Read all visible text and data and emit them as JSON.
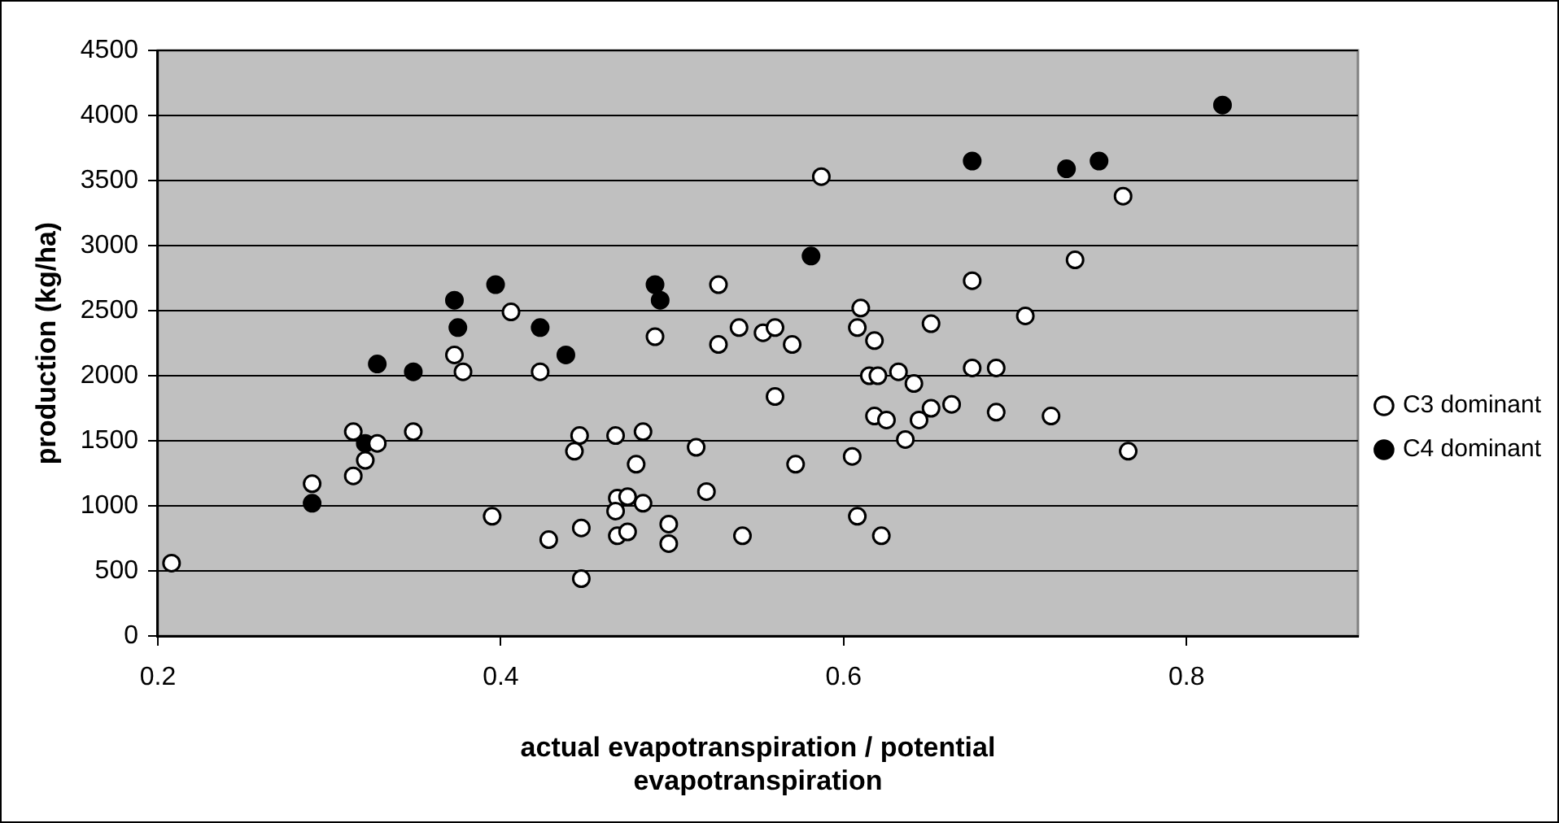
{
  "chart_data": {
    "type": "scatter",
    "xlabel": "actual evapotranspiration / potential evapotranspiration",
    "ylabel": "production (kg/ha)",
    "xlim": [
      0.2,
      0.9
    ],
    "xticks": [
      0.2,
      0.4,
      0.6,
      0.8
    ],
    "ylim": [
      0,
      4500
    ],
    "yticks": [
      0,
      500,
      1000,
      1500,
      2000,
      2500,
      3000,
      3500,
      4000,
      4500
    ],
    "grid": "y",
    "legend": "right",
    "marker": "circle",
    "series": [
      {
        "name": "C3 dominant",
        "color": "#ffffff",
        "x": [
          0.208,
          0.29,
          0.314,
          0.314,
          0.321,
          0.328,
          0.349,
          0.373,
          0.378,
          0.395,
          0.406,
          0.423,
          0.446,
          0.443,
          0.428,
          0.447,
          0.447,
          0.467,
          0.483,
          0.479,
          0.468,
          0.474,
          0.467,
          0.483,
          0.468,
          0.474,
          0.498,
          0.498,
          0.49,
          0.514,
          0.52,
          0.541,
          0.527,
          0.527,
          0.539,
          0.553,
          0.56,
          0.57,
          0.56,
          0.572,
          0.587,
          0.605,
          0.608,
          0.61,
          0.608,
          0.618,
          0.615,
          0.62,
          0.618,
          0.632,
          0.641,
          0.625,
          0.622,
          0.636,
          0.644,
          0.651,
          0.663,
          0.651,
          0.675,
          0.675,
          0.689,
          0.689,
          0.706,
          0.721,
          0.735,
          0.763,
          0.766
        ],
        "values": [
          560,
          1170,
          1570,
          1230,
          1350,
          1480,
          1570,
          2160,
          2030,
          920,
          2490,
          2030,
          1540,
          1420,
          740,
          830,
          440,
          1540,
          1570,
          1320,
          1060,
          1070,
          960,
          1020,
          770,
          800,
          860,
          710,
          2300,
          1450,
          1110,
          770,
          2700,
          2240,
          2370,
          2330,
          2370,
          2240,
          1840,
          1320,
          3530,
          1380,
          920,
          2520,
          2370,
          2270,
          2000,
          2000,
          1690,
          2030,
          1940,
          1660,
          770,
          1510,
          1660,
          1750,
          1780,
          2400,
          2730,
          2060,
          2060,
          1720,
          2460,
          1690,
          2890,
          3380,
          1420
        ]
      },
      {
        "name": "C4 dominant",
        "color": "#000000",
        "x": [
          0.29,
          0.321,
          0.328,
          0.349,
          0.373,
          0.375,
          0.397,
          0.423,
          0.438,
          0.49,
          0.493,
          0.581,
          0.675,
          0.73,
          0.749,
          0.821
        ],
        "values": [
          1020,
          1480,
          2090,
          2030,
          2580,
          2370,
          2700,
          2370,
          2160,
          2700,
          2580,
          2920,
          3650,
          3590,
          3650,
          4080
        ]
      }
    ]
  }
}
